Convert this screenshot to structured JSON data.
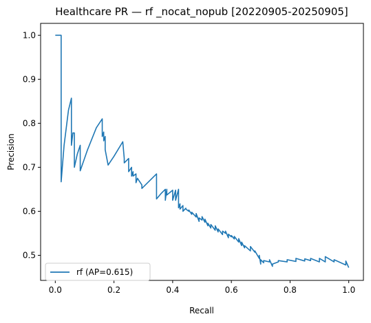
{
  "chart_data": {
    "type": "line",
    "title": "Healthcare PR — rf _nocat_nopub [20220905-20250905]",
    "xlabel": "Recall",
    "ylabel": "Precision",
    "xlim": [
      -0.05,
      1.05
    ],
    "ylim": [
      0.443,
      1.027
    ],
    "xticks": [
      0.0,
      0.2,
      0.4,
      0.6,
      0.8,
      1.0
    ],
    "xtick_labels": [
      "0.0",
      "0.2",
      "0.4",
      "0.6",
      "0.8",
      "1.0"
    ],
    "yticks": [
      0.5,
      0.6,
      0.7,
      0.8,
      0.9,
      1.0
    ],
    "ytick_labels": [
      "0.5",
      "0.6",
      "0.7",
      "0.8",
      "0.9",
      "1.0"
    ],
    "grid": false,
    "legend_position": "lower-left",
    "series": [
      {
        "name": "rf (AP=0.615)",
        "color": "#1f77b4",
        "x": [
          0.0,
          0.02,
          0.02,
          0.02,
          0.03,
          0.045,
          0.055,
          0.055,
          0.06,
          0.065,
          0.065,
          0.075,
          0.085,
          0.085,
          0.11,
          0.14,
          0.16,
          0.16,
          0.165,
          0.165,
          0.17,
          0.17,
          0.18,
          0.2,
          0.23,
          0.235,
          0.235,
          0.25,
          0.25,
          0.26,
          0.26,
          0.265,
          0.265,
          0.275,
          0.275,
          0.28,
          0.28,
          0.295,
          0.295,
          0.345,
          0.345,
          0.36,
          0.36,
          0.375,
          0.375,
          0.38,
          0.38,
          0.4,
          0.4,
          0.41,
          0.41,
          0.42,
          0.42,
          0.425,
          0.425,
          0.435,
          0.435,
          0.445,
          0.445,
          0.455,
          0.455,
          0.465,
          0.465,
          0.48,
          0.48,
          0.49,
          0.49,
          0.5,
          0.5,
          0.51,
          0.51,
          0.52,
          0.52,
          0.53,
          0.53,
          0.545,
          0.545,
          0.555,
          0.555,
          0.57,
          0.57,
          0.58,
          0.58,
          0.59,
          0.59,
          0.6,
          0.6,
          0.61,
          0.61,
          0.625,
          0.625,
          0.635,
          0.635,
          0.645,
          0.645,
          0.665,
          0.665,
          0.68,
          0.68,
          0.695,
          0.695,
          0.7,
          0.7,
          0.71,
          0.71,
          0.73,
          0.73,
          0.74,
          0.74,
          0.76,
          0.76,
          0.79,
          0.79,
          0.82,
          0.82,
          0.85,
          0.85,
          0.87,
          0.87,
          0.9,
          0.9,
          0.92,
          0.92,
          0.95,
          0.95,
          0.99,
          0.99,
          1.0
        ],
        "y": [
          1.0,
          1.0,
          0.667,
          0.667,
          0.75,
          0.83,
          0.857,
          0.75,
          0.778,
          0.778,
          0.7,
          0.73,
          0.75,
          0.692,
          0.74,
          0.79,
          0.81,
          0.77,
          0.78,
          0.76,
          0.77,
          0.74,
          0.705,
          0.725,
          0.758,
          0.72,
          0.71,
          0.72,
          0.69,
          0.7,
          0.68,
          0.69,
          0.68,
          0.685,
          0.665,
          0.675,
          0.675,
          0.66,
          0.652,
          0.685,
          0.628,
          0.64,
          0.64,
          0.65,
          0.625,
          0.65,
          0.637,
          0.648,
          0.625,
          0.648,
          0.625,
          0.65,
          0.608,
          0.617,
          0.605,
          0.613,
          0.6,
          0.607,
          0.605,
          0.6,
          0.603,
          0.593,
          0.598,
          0.587,
          0.595,
          0.577,
          0.585,
          0.58,
          0.588,
          0.575,
          0.582,
          0.567,
          0.573,
          0.562,
          0.57,
          0.557,
          0.567,
          0.553,
          0.56,
          0.547,
          0.555,
          0.55,
          0.555,
          0.54,
          0.548,
          0.542,
          0.545,
          0.537,
          0.543,
          0.53,
          0.538,
          0.522,
          0.53,
          0.517,
          0.522,
          0.51,
          0.52,
          0.507,
          0.51,
          0.493,
          0.5,
          0.48,
          0.49,
          0.483,
          0.488,
          0.485,
          0.49,
          0.475,
          0.48,
          0.485,
          0.488,
          0.485,
          0.49,
          0.486,
          0.493,
          0.487,
          0.492,
          0.488,
          0.493,
          0.485,
          0.493,
          0.485,
          0.497,
          0.485,
          0.49,
          0.478,
          0.487,
          0.472
        ]
      }
    ]
  }
}
